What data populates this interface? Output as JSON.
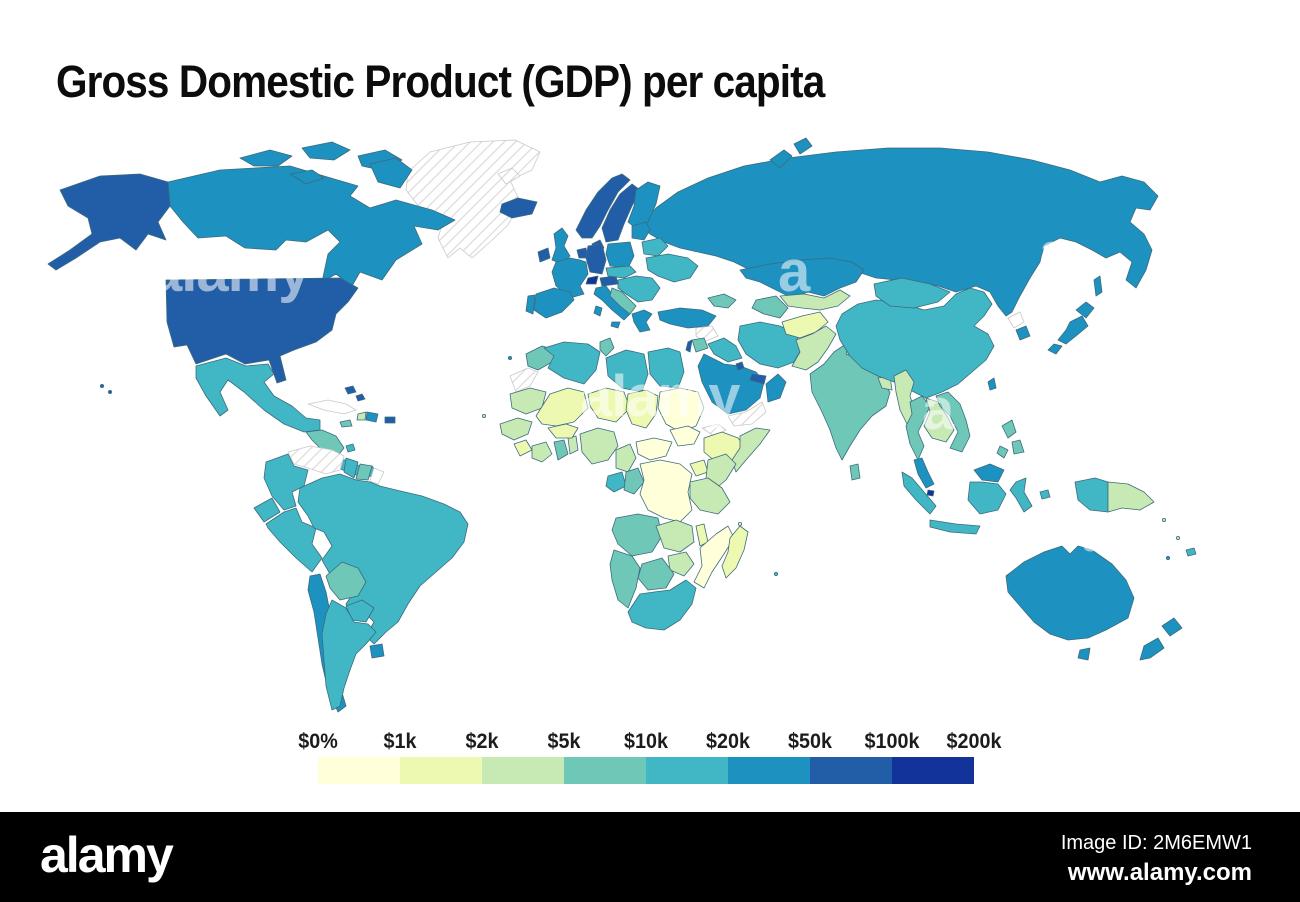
{
  "title": "Gross Domestic Product (GDP) per capita",
  "legend": {
    "labels": [
      "$0%",
      "$1k",
      "$2k",
      "$5k",
      "$10k",
      "$20k",
      "$50k",
      "$100k",
      "$200k"
    ]
  },
  "map": {
    "ocean_color": "#ffffff",
    "border_color": "#3d6b7d",
    "no_data_border": "#c9c9c9",
    "hatch_color": "#dcdcdc"
  },
  "watermarks": [
    "alamy",
    "alamy",
    "a",
    "a",
    "a",
    "a"
  ],
  "footer": {
    "brand": "alamy",
    "image_id": "Image ID: 2M6EMW1",
    "url": "www.alamy.com"
  },
  "chart_data": {
    "type": "heatmap",
    "subtype": "choropleth-world-map",
    "title": "Gross Domestic Product (GDP) per capita",
    "legend_thresholds": [
      "$0%",
      "$1k",
      "$2k",
      "$5k",
      "$10k",
      "$20k",
      "$50k",
      "$100k",
      "$200k"
    ],
    "palette": [
      "#ffffd9",
      "#edf8b1",
      "#c7e9b4",
      "#6ec7b7",
      "#41b6c4",
      "#1d91c0",
      "#225ea8",
      "#12339a"
    ],
    "no_data_style": "white with diagonal hatch",
    "legend_position": "bottom",
    "region_bins": {
      "greenland": 0,
      "svalbard": 0,
      "iceland": 7,
      "canada": 6,
      "canadian-arctic-islands": 6,
      "alaska": 7,
      "usa": 7,
      "hawaii": 7,
      "mexico": 5,
      "guatemala-honduras-nicaragua": 4,
      "costa-rica-panama": 5,
      "cuba": null,
      "haiti": 3,
      "dominican-republic": 6,
      "jamaica": 4,
      "puerto-rico": 7,
      "bahamas": 7,
      "trinidad": 5,
      "venezuela": 0,
      "colombia": 5,
      "guyana": 5,
      "suriname": 4,
      "french-guiana": null,
      "ecuador": 5,
      "peru": 5,
      "brazil": 5,
      "bolivia": 4,
      "paraguay": 5,
      "chile": 6,
      "argentina": 5,
      "uruguay": 6,
      "norway": 7,
      "sweden": 7,
      "finland": 6,
      "denmark": 7,
      "united-kingdom": 6,
      "ireland": 7,
      "benelux": 7,
      "germany": 7,
      "france": 6,
      "switzerland": 8,
      "austria": 7,
      "italy": 6,
      "spain": 6,
      "portugal": 6,
      "poland": 6,
      "czechia-slovakia": 5,
      "hungary-romania-bulgaria": 5,
      "western-balkans": 4,
      "greece": 6,
      "baltics": 6,
      "belarus": 5,
      "ukraine": 5,
      "russia": 6,
      "novaya-zemlya": 6,
      "sakhalin": 6,
      "turkey": 6,
      "caucasus": 4,
      "syria": 0,
      "iraq": 5,
      "iran": 5,
      "saudi-arabia": 6,
      "yemen": 0,
      "oman": 6,
      "uae-qatar": 7,
      "kuwait": 7,
      "jordan": 4,
      "israel": 7,
      "kazakhstan": 6,
      "turkmenistan": 4,
      "uzbekistan-kyrgyzstan-tajikistan": 3,
      "afghanistan": 2,
      "pakistan": 3,
      "india": 4,
      "nepal": 3,
      "bangladesh": 3,
      "sri-lanka": 4,
      "myanmar": 3,
      "thailand": 4,
      "laos-cambodia": 3,
      "vietnam": 4,
      "malaysia-peninsular": 6,
      "singapore": 8,
      "indonesia": 5,
      "malaysia-borneo": 6,
      "philippines": 4,
      "taiwan": 6,
      "china": 5,
      "mongolia": 5,
      "north-korea": null,
      "south-korea": 6,
      "japan": 6,
      "papua-new-guinea": 3,
      "fiji": 5,
      "solomon-islands": 3,
      "vanuatu": 3,
      "new-caledonia": 6,
      "australia": 6,
      "tasmania": 6,
      "new-zealand": 6,
      "morocco": 4,
      "western-sahara": 0,
      "algeria": 5,
      "tunisia": 4,
      "libya": 5,
      "egypt": 5,
      "mauritania": 3,
      "mali": 2,
      "niger": 2,
      "chad": 2,
      "sudan": 1,
      "eritrea": 0,
      "ethiopia": 2,
      "somalia": 3,
      "senegal-guinea": 3,
      "sierra-leone-liberia": 2,
      "ivory-coast": 3,
      "ghana": 4,
      "togo-benin": 3,
      "burkina-faso": 2,
      "nigeria": 3,
      "cameroon": 3,
      "central-african-republic": 1,
      "south-sudan": 1,
      "gabon": 5,
      "congo": 4,
      "dr-congo": 1,
      "uganda": 2,
      "kenya": 3,
      "tanzania": 3,
      "angola": 4,
      "zambia": 3,
      "malawi": 2,
      "mozambique": 1,
      "zimbabwe": 3,
      "botswana": 4,
      "namibia": 4,
      "south-africa": 5,
      "madagascar": 2,
      "canary-islands": 6,
      "cape-verde": 3,
      "mauritius": 5,
      "comoros": 2
    }
  }
}
